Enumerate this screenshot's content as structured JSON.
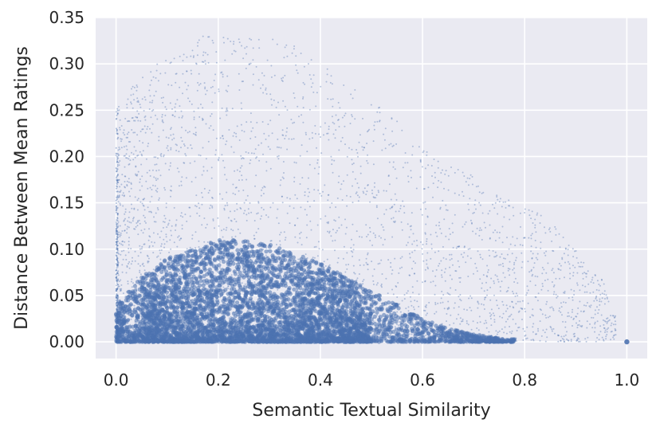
{
  "chart_data": {
    "type": "scatter",
    "title": "",
    "xlabel": "Semantic Textual Similarity",
    "ylabel": "Distance Between Mean Ratings",
    "xlim": [
      -0.04,
      1.04
    ],
    "ylim": [
      -0.018,
      0.35
    ],
    "xticks": [
      0.0,
      0.2,
      0.4,
      0.6,
      0.8,
      1.0
    ],
    "xtick_labels": [
      "0.0",
      "0.2",
      "0.4",
      "0.6",
      "0.8",
      "1.0"
    ],
    "yticks": [
      0.0,
      0.05,
      0.1,
      0.15,
      0.2,
      0.25,
      0.3,
      0.35
    ],
    "ytick_labels": [
      "0.00",
      "0.05",
      "0.10",
      "0.15",
      "0.20",
      "0.25",
      "0.30",
      "0.35"
    ],
    "grid": true,
    "background_color": "#EAEAF2",
    "grid_color": "#FFFFFF",
    "point_color": "#4C72B0",
    "density_profile": {
      "x": [
        0.0,
        0.05,
        0.1,
        0.15,
        0.2,
        0.25,
        0.3,
        0.35,
        0.4,
        0.45,
        0.5,
        0.55,
        0.6,
        0.65,
        0.7,
        0.75,
        0.8,
        0.85,
        0.9,
        0.95,
        1.0
      ],
      "dense_upper": [
        0.04,
        0.07,
        0.09,
        0.1,
        0.11,
        0.11,
        0.105,
        0.095,
        0.085,
        0.07,
        0.055,
        0.04,
        0.025,
        0.015,
        0.008,
        0.004,
        0.002,
        0.001,
        0.0,
        0.0,
        0.0
      ],
      "sparse_upper": [
        0.25,
        0.29,
        0.31,
        0.33,
        0.33,
        0.33,
        0.33,
        0.32,
        0.3,
        0.28,
        0.26,
        0.24,
        0.21,
        0.19,
        0.18,
        0.16,
        0.15,
        0.13,
        0.1,
        0.07,
        0.0
      ]
    },
    "highlighted_points": [
      {
        "x": 1.0,
        "y": 0.0
      }
    ]
  }
}
